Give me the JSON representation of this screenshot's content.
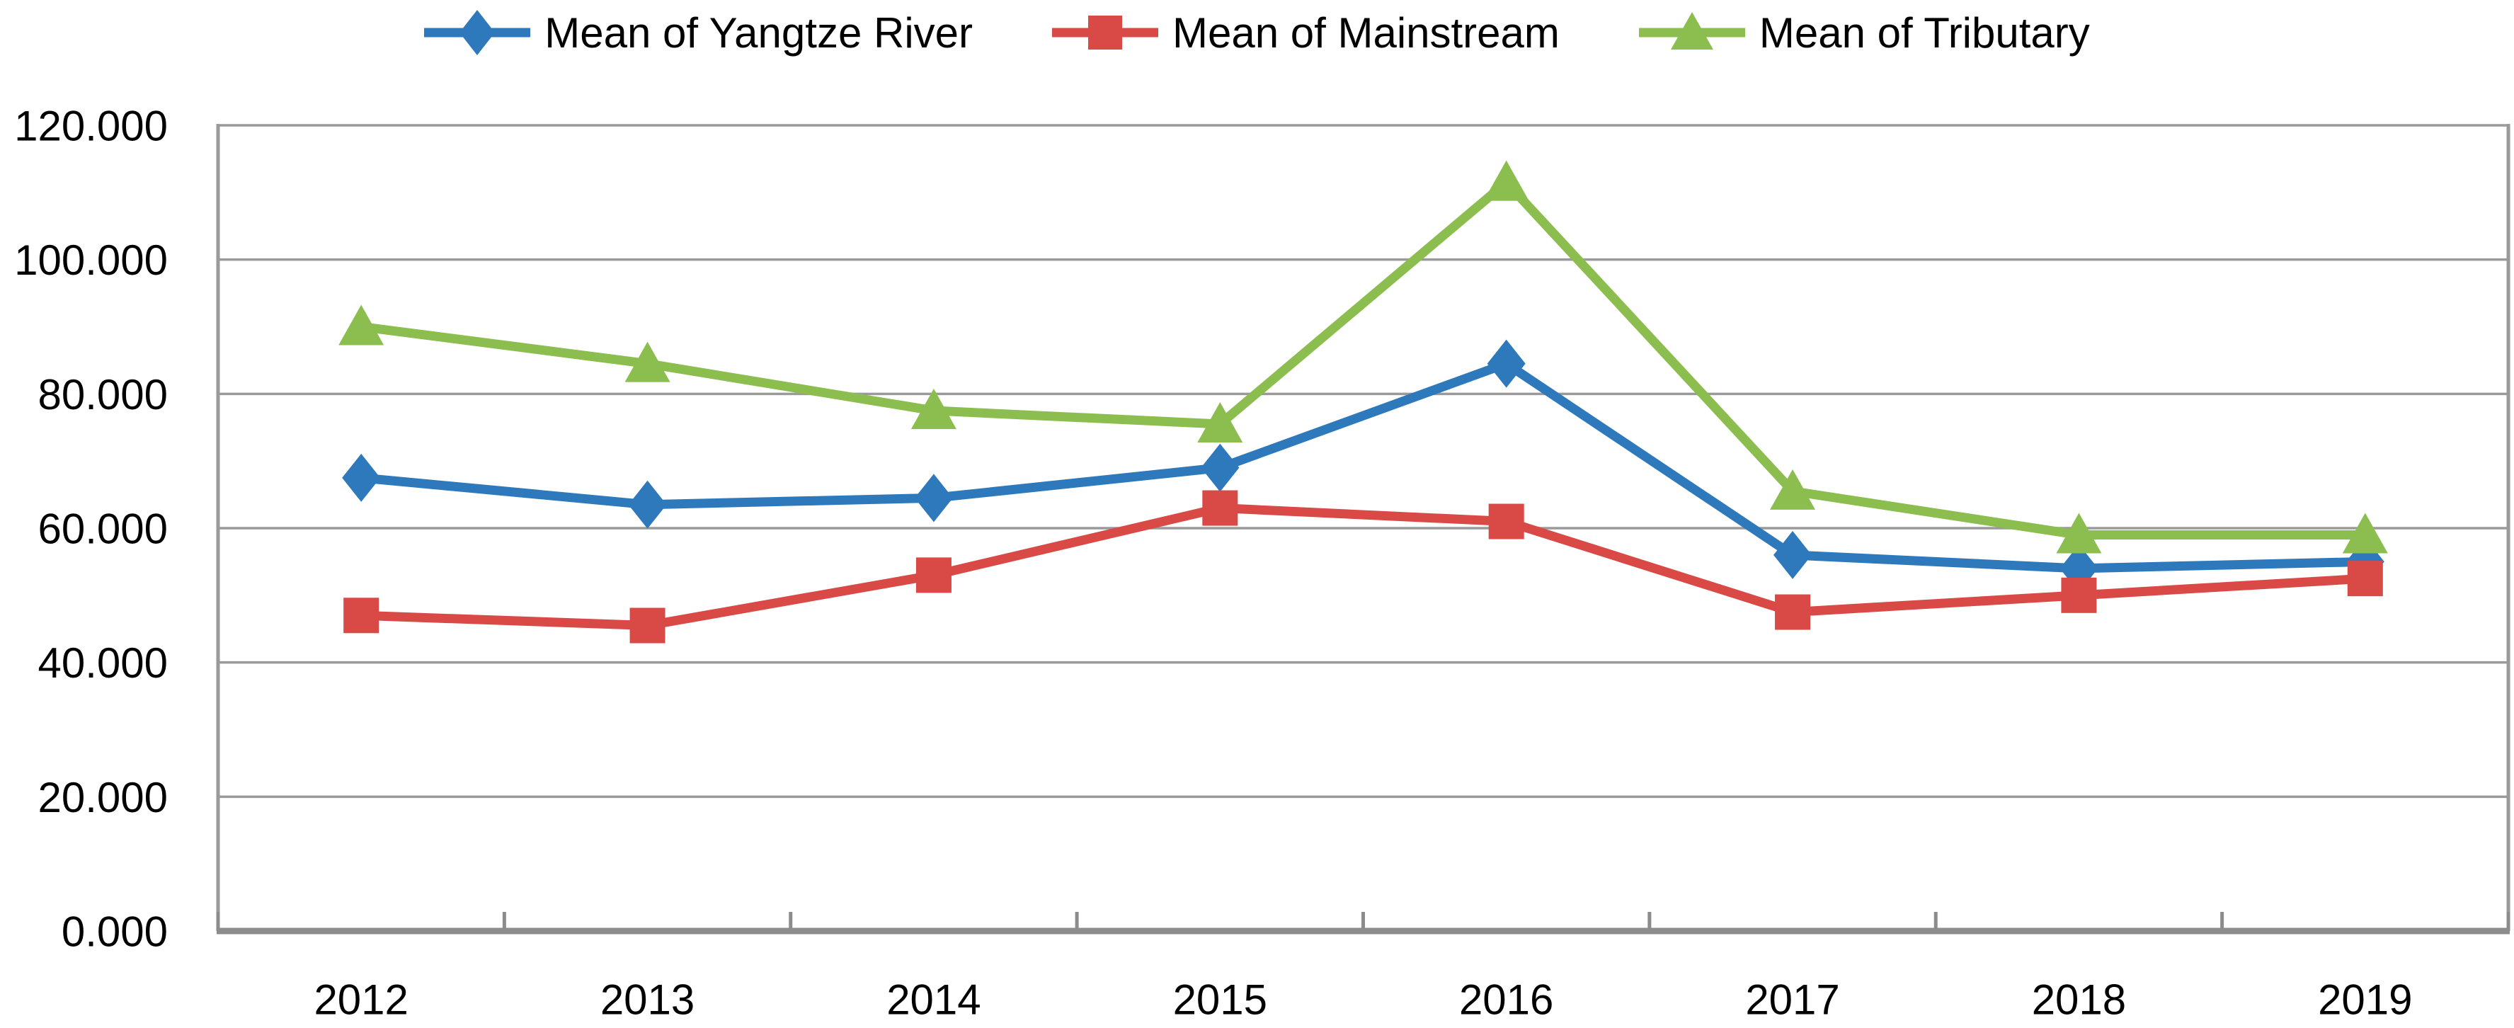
{
  "chart_data": {
    "type": "line",
    "title": "",
    "xlabel": "",
    "ylabel": "",
    "categories": [
      "2012",
      "2013",
      "2014",
      "2015",
      "2016",
      "2017",
      "2018",
      "2019"
    ],
    "series": [
      {
        "name": "Mean of Yangtze River",
        "marker": "diamond",
        "color": "#2E79BC",
        "values": [
          67.5,
          63.5,
          64.5,
          69.0,
          84.5,
          56.0,
          54.0,
          55.0
        ]
      },
      {
        "name": "Mean of Mainstream",
        "marker": "square",
        "color": "#D94946",
        "values": [
          47.0,
          45.5,
          53.0,
          63.0,
          61.0,
          47.5,
          50.0,
          52.5
        ]
      },
      {
        "name": "Mean of Tributary",
        "marker": "triangle",
        "color": "#8CBE4F",
        "values": [
          90.0,
          84.5,
          77.5,
          75.5,
          111.5,
          65.5,
          59.0,
          59.0
        ]
      }
    ],
    "ylim": [
      0,
      120
    ],
    "ytick_step": 20,
    "ytick_labels": [
      "0.000",
      "20.000",
      "40.000",
      "60.000",
      "80.000",
      "100.000",
      "120.000"
    ],
    "grid": "horizontal-only",
    "legend_position": "top-center",
    "grid_color": "#9A9A9A",
    "axis_color": "#8C8C8C",
    "text_color": "#000000"
  }
}
